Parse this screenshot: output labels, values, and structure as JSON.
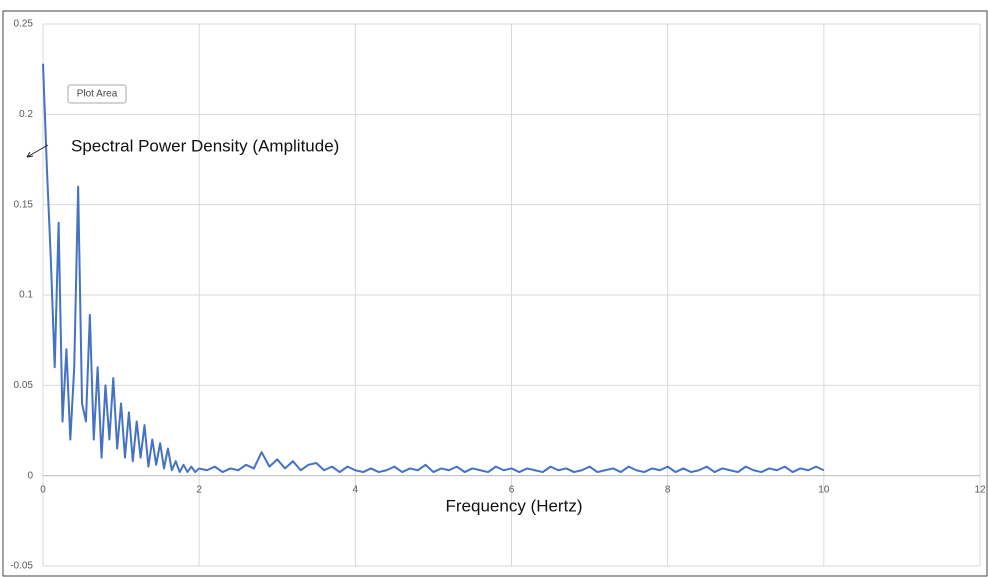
{
  "chart_data": {
    "type": "line",
    "tooltip": "Plot Area",
    "annotation": "Spectral Power Density (Amplitude)",
    "x_label": "Frequency (Hertz)",
    "x": [
      0,
      0.05,
      0.1,
      0.15,
      0.2,
      0.25,
      0.3,
      0.35,
      0.4,
      0.45,
      0.5,
      0.55,
      0.6,
      0.65,
      0.7,
      0.75,
      0.8,
      0.85,
      0.9,
      0.95,
      1.0,
      1.05,
      1.1,
      1.15,
      1.2,
      1.25,
      1.3,
      1.35,
      1.4,
      1.45,
      1.5,
      1.55,
      1.6,
      1.65,
      1.7,
      1.75,
      1.8,
      1.85,
      1.9,
      1.95,
      2.0,
      2.1,
      2.2,
      2.3,
      2.4,
      2.5,
      2.6,
      2.7,
      2.8,
      2.9,
      3.0,
      3.1,
      3.2,
      3.3,
      3.4,
      3.5,
      3.6,
      3.7,
      3.8,
      3.9,
      4.0,
      4.1,
      4.2,
      4.3,
      4.4,
      4.5,
      4.6,
      4.7,
      4.8,
      4.9,
      5.0,
      5.1,
      5.2,
      5.3,
      5.4,
      5.5,
      5.6,
      5.7,
      5.8,
      5.9,
      6.0,
      6.1,
      6.2,
      6.3,
      6.4,
      6.5,
      6.6,
      6.7,
      6.8,
      6.9,
      7.0,
      7.1,
      7.2,
      7.3,
      7.4,
      7.5,
      7.6,
      7.7,
      7.8,
      7.9,
      8.0,
      8.1,
      8.2,
      8.3,
      8.4,
      8.5,
      8.6,
      8.7,
      8.8,
      8.9,
      9.0,
      9.1,
      9.2,
      9.3,
      9.4,
      9.5,
      9.6,
      9.7,
      9.8,
      9.9,
      10.0
    ],
    "series": [
      {
        "name": "Spectral Power Density",
        "color": "#4472c4",
        "values": [
          0.228,
          0.17,
          0.12,
          0.06,
          0.14,
          0.03,
          0.07,
          0.02,
          0.06,
          0.16,
          0.04,
          0.03,
          0.089,
          0.02,
          0.06,
          0.01,
          0.05,
          0.02,
          0.054,
          0.015,
          0.04,
          0.01,
          0.035,
          0.008,
          0.03,
          0.01,
          0.028,
          0.005,
          0.02,
          0.006,
          0.018,
          0.004,
          0.015,
          0.003,
          0.008,
          0.002,
          0.006,
          0.002,
          0.005,
          0.002,
          0.004,
          0.003,
          0.005,
          0.002,
          0.004,
          0.003,
          0.006,
          0.004,
          0.013,
          0.005,
          0.009,
          0.004,
          0.008,
          0.003,
          0.006,
          0.007,
          0.003,
          0.005,
          0.002,
          0.005,
          0.003,
          0.002,
          0.004,
          0.002,
          0.003,
          0.005,
          0.002,
          0.004,
          0.003,
          0.006,
          0.002,
          0.004,
          0.003,
          0.005,
          0.002,
          0.004,
          0.003,
          0.002,
          0.005,
          0.003,
          0.004,
          0.002,
          0.004,
          0.003,
          0.002,
          0.005,
          0.003,
          0.004,
          0.002,
          0.003,
          0.005,
          0.002,
          0.003,
          0.004,
          0.002,
          0.005,
          0.003,
          0.002,
          0.004,
          0.003,
          0.005,
          0.002,
          0.004,
          0.002,
          0.003,
          0.005,
          0.002,
          0.004,
          0.003,
          0.002,
          0.005,
          0.003,
          0.002,
          0.004,
          0.003,
          0.005,
          0.002,
          0.004,
          0.003,
          0.005,
          0.003
        ]
      }
    ],
    "xlim": [
      0,
      12
    ],
    "xticks": [
      0,
      2,
      4,
      6,
      8,
      10,
      12
    ],
    "ylim": [
      -0.05,
      0.25
    ],
    "yticks": [
      -0.05,
      0,
      0.05,
      0.1,
      0.15,
      0.2,
      0.25
    ],
    "grid": true
  }
}
